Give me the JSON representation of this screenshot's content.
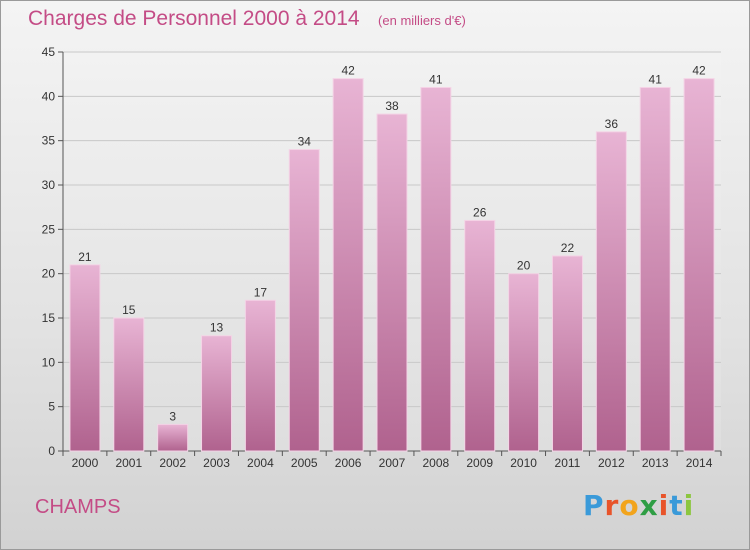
{
  "header": {
    "title": "Charges de Personnel 2000 à 2014",
    "unit": "(en milliers d'€)"
  },
  "footer": {
    "commune": "CHAMPS",
    "brand": "Proxiti",
    "brand_colors": [
      "#3a9ad9",
      "#e8542a",
      "#f2a41c",
      "#2f9e44",
      "#e8542a",
      "#3a9ad9",
      "#8cc63f"
    ]
  },
  "colors": {
    "bar_light": "#e8b4d4",
    "bar_dark": "#b0628e",
    "accent": "#c44c86"
  },
  "chart_data": {
    "type": "bar",
    "title": "Charges de Personnel 2000 à 2014",
    "subtitle": "(en milliers d'€)",
    "categories": [
      "2000",
      "2001",
      "2002",
      "2003",
      "2004",
      "2005",
      "2006",
      "2007",
      "2008",
      "2009",
      "2010",
      "2011",
      "2012",
      "2013",
      "2014"
    ],
    "values": [
      21,
      15,
      3,
      13,
      17,
      34,
      42,
      38,
      41,
      26,
      20,
      22,
      36,
      41,
      42
    ],
    "data_labels": [
      "21",
      "15",
      "3",
      "13",
      "17",
      "34",
      "42",
      "38",
      "41",
      "26",
      "20",
      "22",
      "36",
      "41",
      "42"
    ],
    "ylim": [
      0,
      45
    ],
    "yticks": [
      0,
      5,
      10,
      15,
      20,
      25,
      30,
      35,
      40,
      45
    ],
    "ytick_labels": [
      "0",
      "5",
      "10",
      "15",
      "20",
      "25",
      "30",
      "35",
      "40",
      "45"
    ],
    "grid": "horizontal",
    "legend": "none"
  }
}
